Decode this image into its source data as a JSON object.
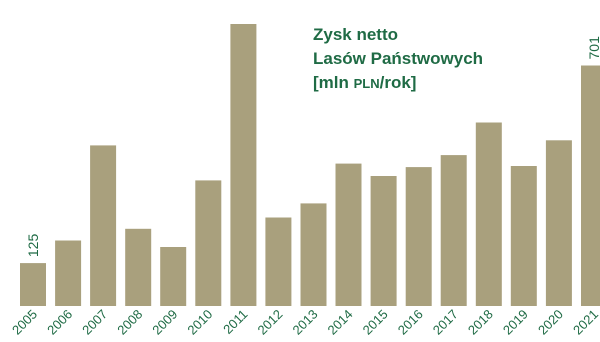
{
  "chart_data": {
    "type": "bar",
    "title_lines": [
      "Zysk netto",
      "Lasów Państwowych"
    ],
    "unit_prefix": "[mln ",
    "unit_small": "PLN",
    "unit_suffix": "/rok]",
    "categories": [
      "2005",
      "2006",
      "2007",
      "2008",
      "2009",
      "2010",
      "2011",
      "2012",
      "2013",
      "2014",
      "2015",
      "2016",
      "2017",
      "2018",
      "2019",
      "2020",
      "2021"
    ],
    "values": [
      125,
      191,
      468,
      225,
      172,
      366,
      822,
      258,
      299,
      415,
      379,
      405,
      440,
      535,
      408,
      483,
      701
    ],
    "value_labels": {
      "0": "125",
      "16": "701"
    },
    "bar_color": "#a9a07d",
    "text_color": "#1f6b45",
    "ylim": [
      0,
      822
    ]
  }
}
